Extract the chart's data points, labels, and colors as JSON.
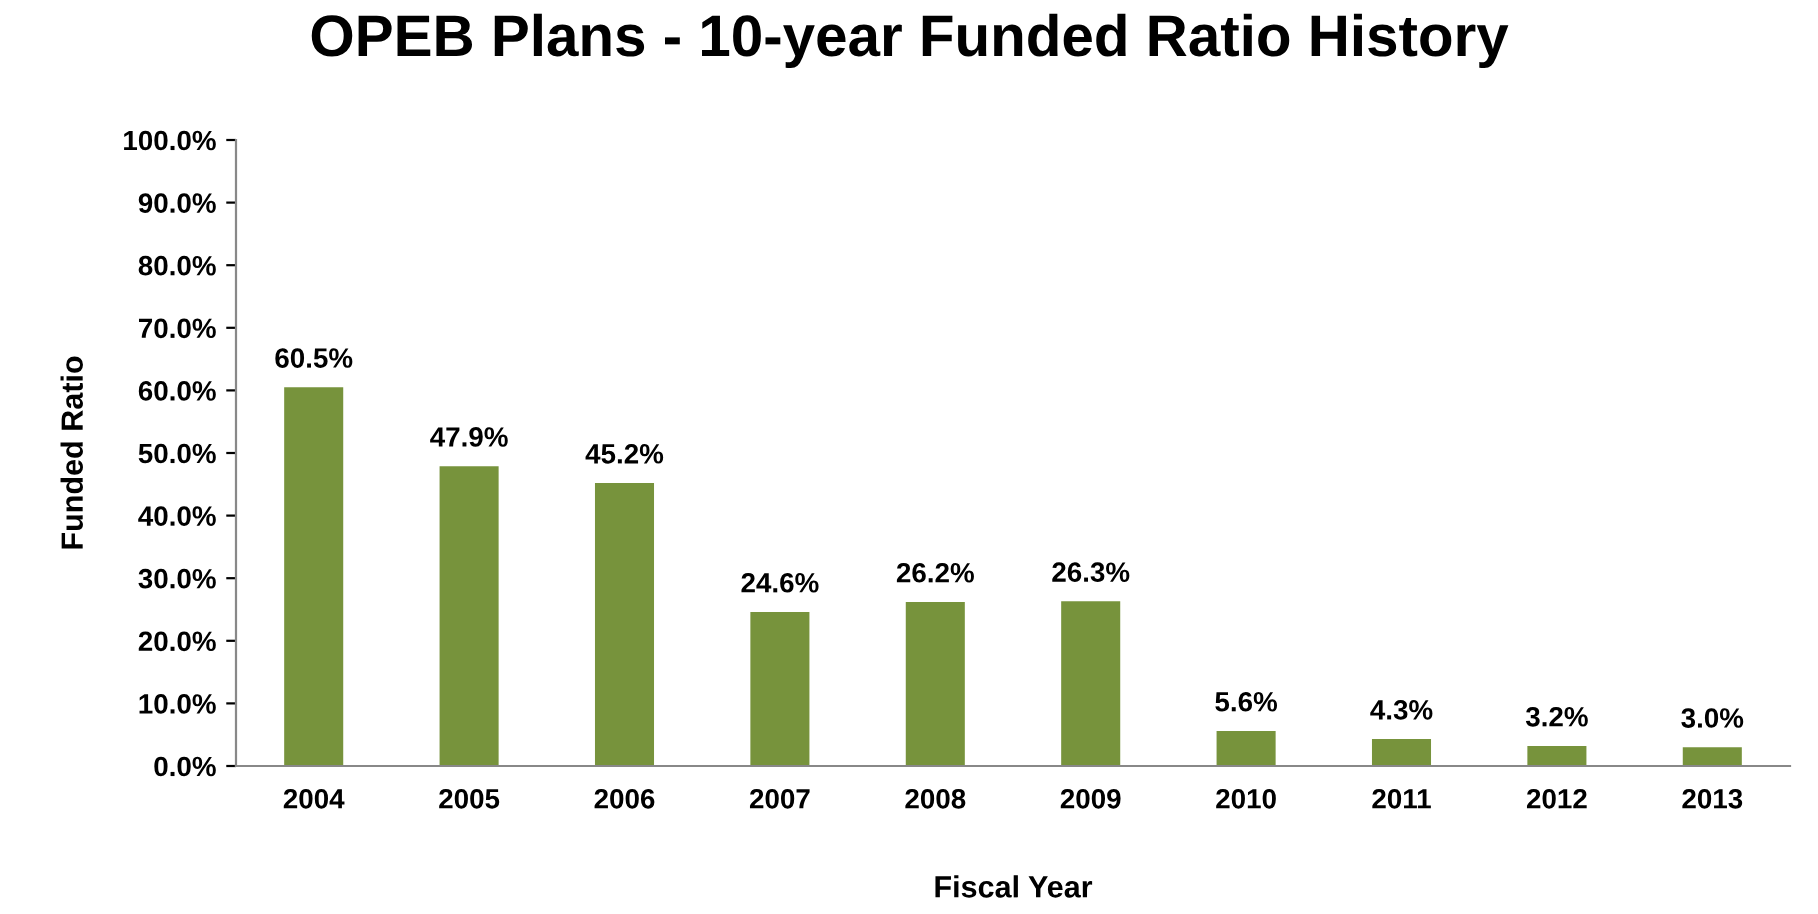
{
  "chart_data": {
    "type": "bar",
    "title": "OPEB Plans - 10-year Funded Ratio History",
    "xlabel": "Fiscal Year",
    "ylabel": "Funded Ratio",
    "categories": [
      "2004",
      "2005",
      "2006",
      "2007",
      "2008",
      "2009",
      "2010",
      "2011",
      "2012",
      "2013"
    ],
    "values": [
      60.5,
      47.9,
      45.2,
      24.6,
      26.2,
      26.3,
      5.6,
      4.3,
      3.2,
      3.0
    ],
    "value_labels": [
      "60.5%",
      "47.9%",
      "45.2%",
      "24.6%",
      "26.2%",
      "26.3%",
      "5.6%",
      "4.3%",
      "3.2%",
      "3.0%"
    ],
    "color": "#77933c",
    "ylim": [
      0,
      100
    ],
    "yticks": [
      {
        "value": 0,
        "label": "0.0%"
      },
      {
        "value": 10,
        "label": "10.0%"
      },
      {
        "value": 20,
        "label": "20.0%"
      },
      {
        "value": 30,
        "label": "30.0%"
      },
      {
        "value": 40,
        "label": "40.0%"
      },
      {
        "value": 50,
        "label": "50.0%"
      },
      {
        "value": 60,
        "label": "60.0%"
      },
      {
        "value": 70,
        "label": "70.0%"
      },
      {
        "value": 80,
        "label": "80.0%"
      },
      {
        "value": 90,
        "label": "90.0%"
      },
      {
        "value": 100,
        "label": "100.0%"
      }
    ],
    "grid": false,
    "legend": false
  }
}
